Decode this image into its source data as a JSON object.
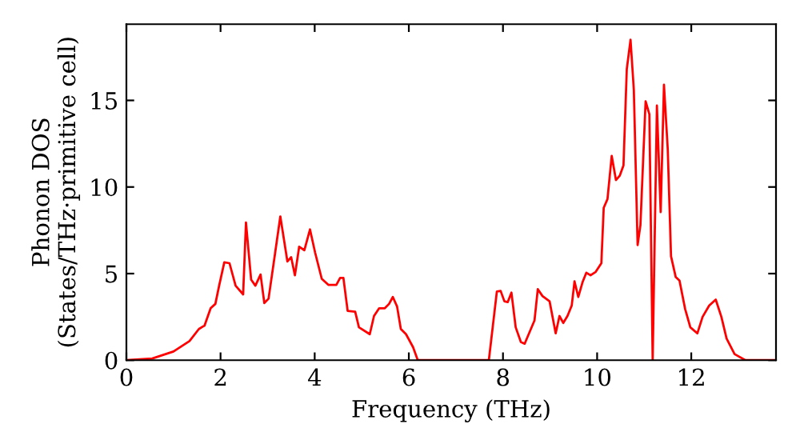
{
  "chart_data": {
    "type": "line",
    "xlabel": "Frequency (THz)",
    "ylabel": "Phonon DOS\n(States/THz·primitive cell)",
    "series": [
      {
        "color": "#ff0000",
        "x": [
          0,
          0.55,
          1.0,
          1.34,
          1.54,
          1.66,
          1.79,
          1.89,
          1.97,
          2.08,
          2.19,
          2.32,
          2.48,
          2.54,
          2.65,
          2.74,
          2.85,
          2.93,
          3.02,
          3.16,
          3.27,
          3.42,
          3.5,
          3.58,
          3.67,
          3.78,
          3.9,
          4.01,
          4.15,
          4.29,
          4.46,
          4.54,
          4.61,
          4.7,
          4.86,
          4.94,
          5.17,
          5.26,
          5.37,
          5.49,
          5.58,
          5.66,
          5.75,
          5.83,
          5.94,
          6.09,
          6.19,
          7.7,
          7.87,
          7.95,
          8.03,
          8.1,
          8.18,
          8.27,
          8.38,
          8.46,
          8.67,
          8.74,
          8.84,
          8.99,
          9.12,
          9.2,
          9.28,
          9.37,
          9.46,
          9.52,
          9.6,
          9.69,
          9.77,
          9.86,
          9.97,
          10.09,
          10.14,
          10.22,
          10.31,
          10.4,
          10.48,
          10.56,
          10.63,
          10.71,
          10.78,
          10.86,
          10.92,
          11.03,
          11.11,
          11.18,
          11.27,
          11.35,
          11.42,
          11.5,
          11.57,
          11.67,
          11.75,
          11.87,
          11.98,
          12.13,
          12.24,
          12.38,
          12.52,
          12.64,
          12.75,
          12.92,
          13.15,
          13.8
        ],
        "values": [
          0,
          0.1,
          0.5,
          1.1,
          1.8,
          2.0,
          3.0,
          3.25,
          4.3,
          5.65,
          5.6,
          4.3,
          3.8,
          7.95,
          4.65,
          4.3,
          4.95,
          3.3,
          3.55,
          6.2,
          8.3,
          5.7,
          5.95,
          4.9,
          6.55,
          6.35,
          7.55,
          6.2,
          4.7,
          4.35,
          4.35,
          4.75,
          4.75,
          2.85,
          2.8,
          1.9,
          1.5,
          2.55,
          3.0,
          3.0,
          3.25,
          3.65,
          3.1,
          1.8,
          1.5,
          0.75,
          0,
          0,
          3.97,
          4.0,
          3.4,
          3.35,
          3.9,
          1.9,
          1.05,
          0.95,
          2.3,
          4.1,
          3.7,
          3.4,
          1.55,
          2.55,
          2.15,
          2.55,
          3.15,
          4.55,
          3.65,
          4.5,
          5.05,
          4.9,
          5.1,
          5.6,
          8.8,
          9.3,
          11.8,
          10.4,
          10.65,
          11.25,
          16.8,
          18.5,
          15.6,
          6.65,
          7.8,
          14.95,
          14.2,
          0,
          14.7,
          8.55,
          15.9,
          12.2,
          6.0,
          4.8,
          4.6,
          2.95,
          1.9,
          1.55,
          2.5,
          3.15,
          3.5,
          2.5,
          1.25,
          0.35,
          0,
          0
        ]
      }
    ],
    "xlim": [
      0,
      13.8
    ],
    "ylim": [
      0,
      19.4
    ],
    "xticks": [
      0,
      2,
      4,
      6,
      8,
      10,
      12
    ],
    "yticks": [
      0,
      5,
      10,
      15
    ],
    "grid": false,
    "legend": false,
    "marker": "none",
    "line_style": "solid"
  }
}
